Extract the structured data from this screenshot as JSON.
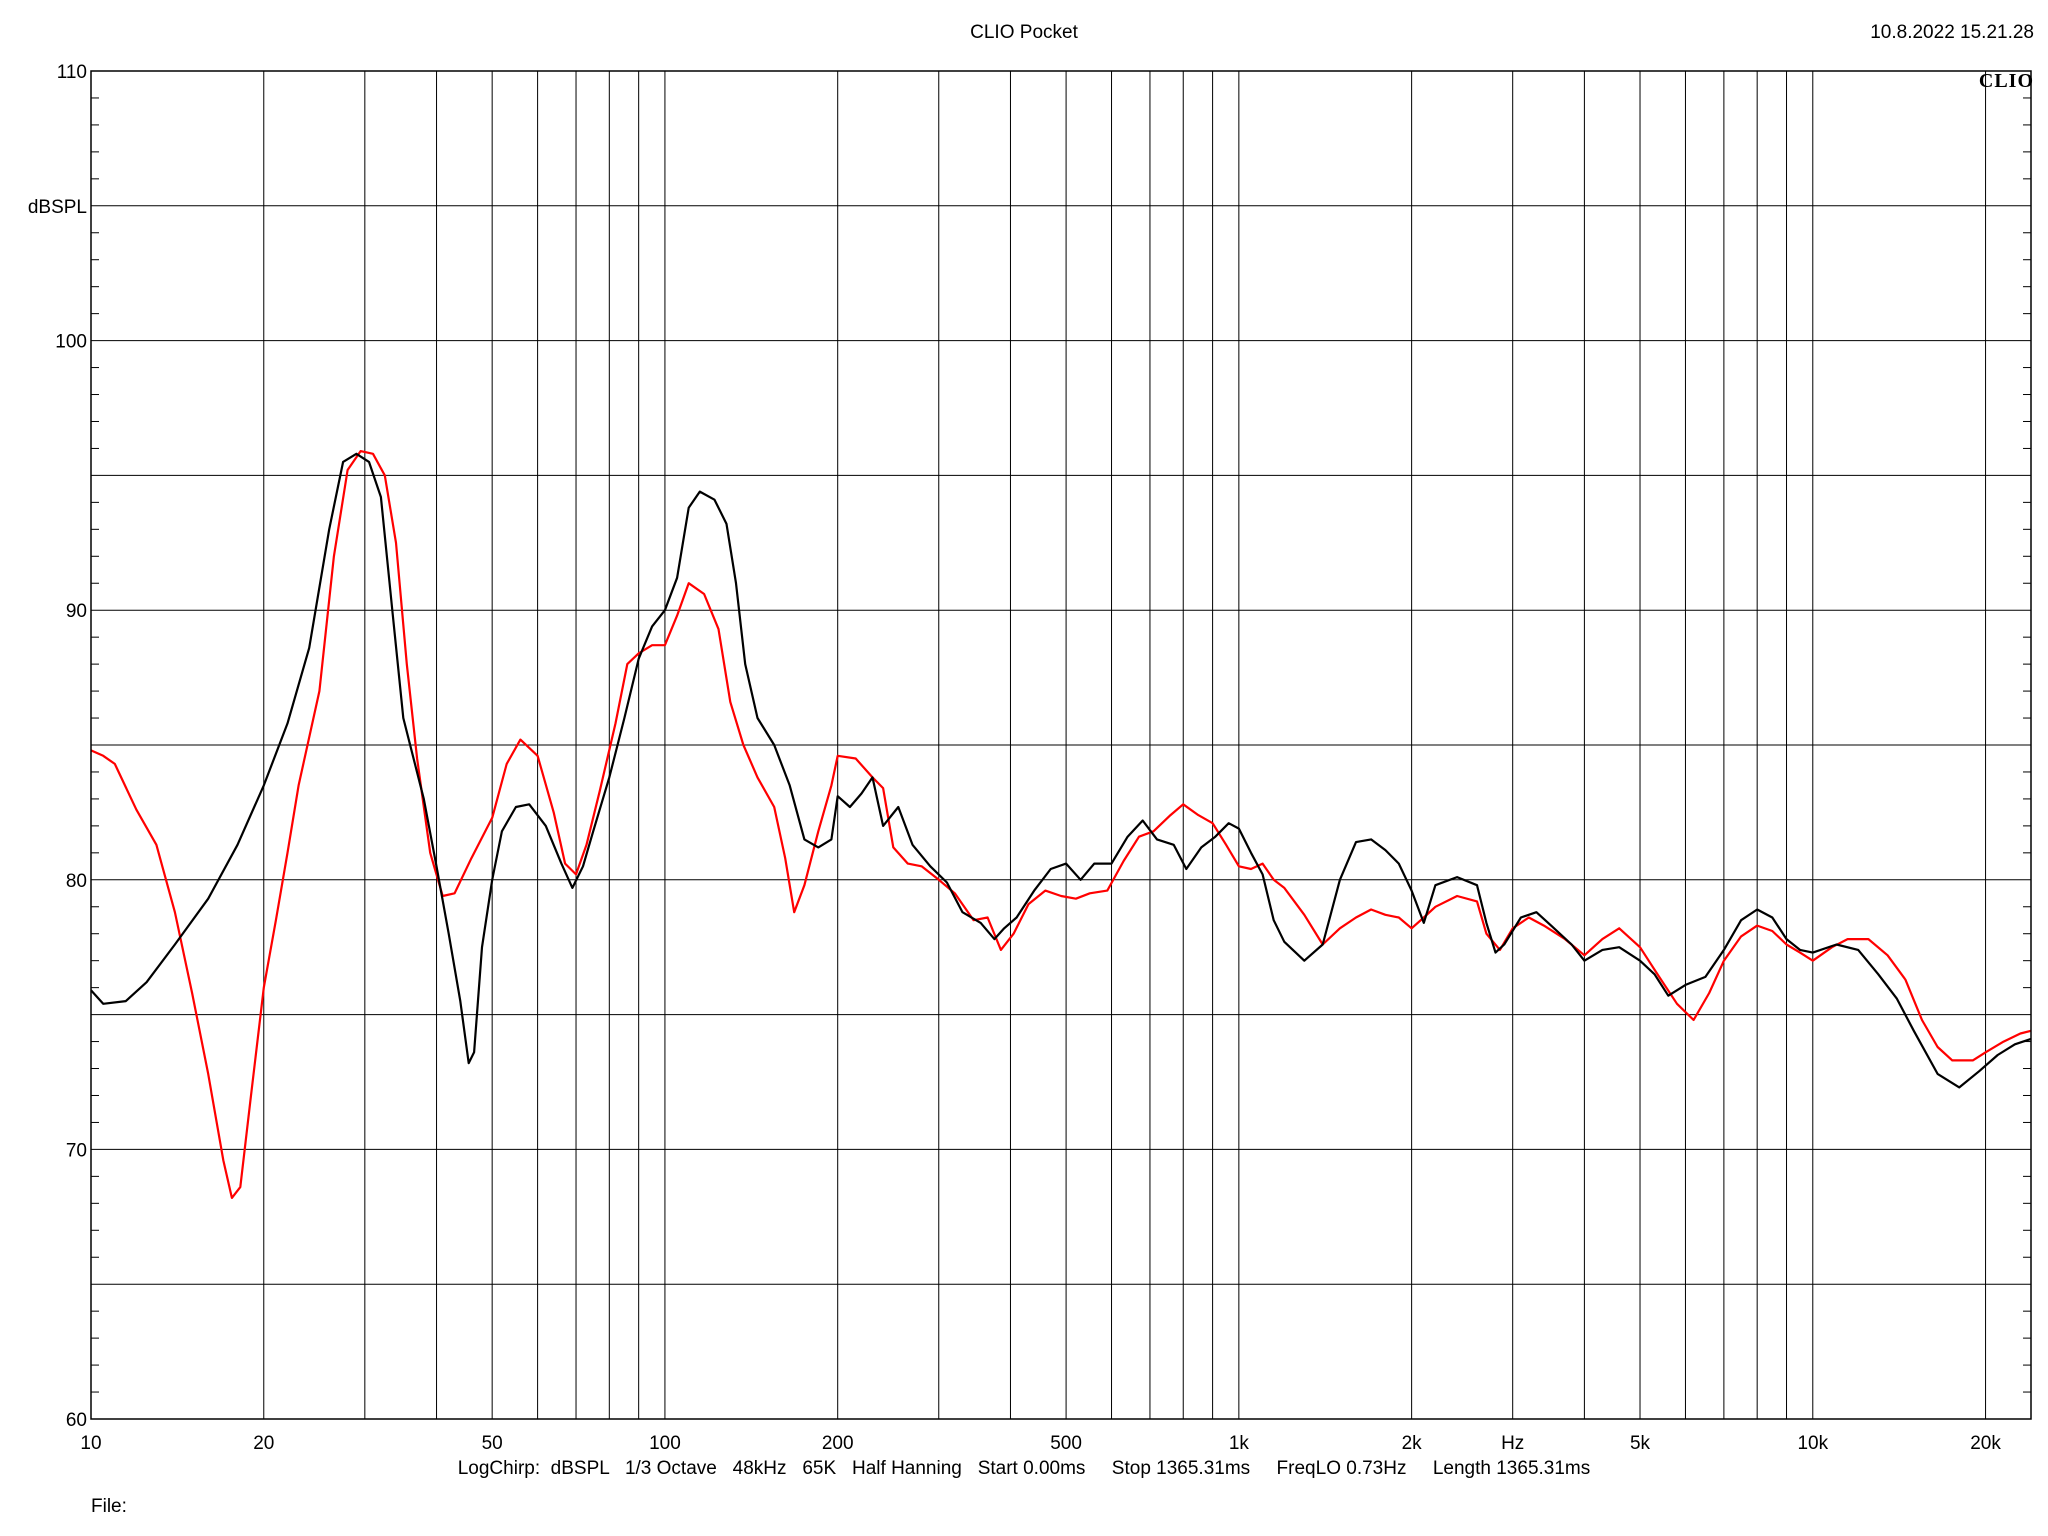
{
  "header": {
    "title": "CLIO Pocket",
    "timestamp": "10.8.2022 15.21.28",
    "brand": "CLIO"
  },
  "footer": {
    "settings": "LogChirp:  dBSPL   1/3 Octave   48kHz   65K   Half Hanning   Start 0.00ms     Stop 1365.31ms     FreqLO 0.73Hz     Length 1365.31ms",
    "file_label": "File:"
  },
  "colors": {
    "series_black": "#000000",
    "series_red": "#ff0000",
    "grid": "#000000"
  },
  "chart_data": {
    "type": "line",
    "title": "CLIO Pocket",
    "xlabel": "Hz",
    "ylabel": "dBSPL",
    "x_scale": "log",
    "xlim": [
      10,
      24000
    ],
    "ylim": [
      60,
      110
    ],
    "grid": true,
    "x_ticks": [
      {
        "value": 10,
        "label": "10"
      },
      {
        "value": 20,
        "label": "20"
      },
      {
        "value": 50,
        "label": "50"
      },
      {
        "value": 100,
        "label": "100"
      },
      {
        "value": 200,
        "label": "200"
      },
      {
        "value": 500,
        "label": "500"
      },
      {
        "value": 1000,
        "label": "1k"
      },
      {
        "value": 2000,
        "label": "2k"
      },
      {
        "value": 5000,
        "label": "5k"
      },
      {
        "value": 10000,
        "label": "10k"
      },
      {
        "value": 20000,
        "label": "20k"
      }
    ],
    "y_ticks": [
      {
        "value": 110,
        "label": "110"
      },
      {
        "value": 100,
        "label": "100"
      },
      {
        "value": 90,
        "label": "90"
      },
      {
        "value": 80,
        "label": "80"
      },
      {
        "value": 70,
        "label": "70"
      },
      {
        "value": 60,
        "label": "60"
      }
    ],
    "series": [
      {
        "color": "#000000",
        "points": [
          [
            10,
            75.9
          ],
          [
            10.5,
            75.4
          ],
          [
            11.5,
            75.5
          ],
          [
            12.5,
            76.2
          ],
          [
            14,
            77.6
          ],
          [
            16,
            79.3
          ],
          [
            18,
            81.3
          ],
          [
            20,
            83.5
          ],
          [
            22,
            85.8
          ],
          [
            24,
            88.6
          ],
          [
            26,
            93.0
          ],
          [
            27.5,
            95.5
          ],
          [
            29,
            95.8
          ],
          [
            30.5,
            95.5
          ],
          [
            32,
            94.2
          ],
          [
            33.5,
            90.0
          ],
          [
            35,
            86.0
          ],
          [
            38,
            83.0
          ],
          [
            40,
            80.5
          ],
          [
            42,
            78.0
          ],
          [
            44,
            75.5
          ],
          [
            45.5,
            73.2
          ],
          [
            46.5,
            73.6
          ],
          [
            48,
            77.5
          ],
          [
            50,
            80.0
          ],
          [
            52,
            81.8
          ],
          [
            55,
            82.7
          ],
          [
            58,
            82.8
          ],
          [
            62,
            82.0
          ],
          [
            66,
            80.6
          ],
          [
            69,
            79.7
          ],
          [
            72,
            80.5
          ],
          [
            75,
            81.8
          ],
          [
            80,
            83.8
          ],
          [
            85,
            86.0
          ],
          [
            90,
            88.2
          ],
          [
            95,
            89.4
          ],
          [
            100,
            90.0
          ],
          [
            105,
            91.2
          ],
          [
            110,
            93.8
          ],
          [
            115,
            94.4
          ],
          [
            122,
            94.1
          ],
          [
            128,
            93.2
          ],
          [
            133,
            91.0
          ],
          [
            138,
            88.0
          ],
          [
            145,
            86.0
          ],
          [
            155,
            85.0
          ],
          [
            165,
            83.5
          ],
          [
            175,
            81.5
          ],
          [
            185,
            81.2
          ],
          [
            195,
            81.5
          ],
          [
            200,
            83.1
          ],
          [
            210,
            82.7
          ],
          [
            220,
            83.2
          ],
          [
            230,
            83.8
          ],
          [
            240,
            82.0
          ],
          [
            255,
            82.7
          ],
          [
            270,
            81.3
          ],
          [
            290,
            80.5
          ],
          [
            310,
            79.9
          ],
          [
            330,
            78.8
          ],
          [
            355,
            78.4
          ],
          [
            375,
            77.8
          ],
          [
            390,
            78.2
          ],
          [
            410,
            78.6
          ],
          [
            440,
            79.6
          ],
          [
            470,
            80.4
          ],
          [
            500,
            80.6
          ],
          [
            530,
            80.0
          ],
          [
            560,
            80.6
          ],
          [
            600,
            80.6
          ],
          [
            640,
            81.6
          ],
          [
            680,
            82.2
          ],
          [
            720,
            81.5
          ],
          [
            770,
            81.3
          ],
          [
            810,
            80.4
          ],
          [
            860,
            81.2
          ],
          [
            910,
            81.6
          ],
          [
            960,
            82.1
          ],
          [
            1000,
            81.9
          ],
          [
            1050,
            81.0
          ],
          [
            1100,
            80.2
          ],
          [
            1150,
            78.5
          ],
          [
            1200,
            77.7
          ],
          [
            1300,
            77.0
          ],
          [
            1400,
            77.6
          ],
          [
            1500,
            80.0
          ],
          [
            1600,
            81.4
          ],
          [
            1700,
            81.5
          ],
          [
            1800,
            81.1
          ],
          [
            1900,
            80.6
          ],
          [
            2000,
            79.6
          ],
          [
            2100,
            78.4
          ],
          [
            2200,
            79.8
          ],
          [
            2400,
            80.1
          ],
          [
            2600,
            79.8
          ],
          [
            2700,
            78.4
          ],
          [
            2800,
            77.3
          ],
          [
            2900,
            77.6
          ],
          [
            3100,
            78.6
          ],
          [
            3300,
            78.8
          ],
          [
            3500,
            78.3
          ],
          [
            3800,
            77.6
          ],
          [
            4000,
            77.0
          ],
          [
            4300,
            77.4
          ],
          [
            4600,
            77.5
          ],
          [
            5000,
            77.0
          ],
          [
            5300,
            76.5
          ],
          [
            5600,
            75.7
          ],
          [
            6000,
            76.1
          ],
          [
            6500,
            76.4
          ],
          [
            7000,
            77.4
          ],
          [
            7500,
            78.5
          ],
          [
            8000,
            78.9
          ],
          [
            8500,
            78.6
          ],
          [
            9000,
            77.8
          ],
          [
            9500,
            77.4
          ],
          [
            10000,
            77.3
          ],
          [
            11000,
            77.6
          ],
          [
            12000,
            77.4
          ],
          [
            13000,
            76.5
          ],
          [
            14000,
            75.6
          ],
          [
            15000,
            74.4
          ],
          [
            16500,
            72.8
          ],
          [
            18000,
            72.3
          ],
          [
            19500,
            72.9
          ],
          [
            21000,
            73.5
          ],
          [
            22500,
            73.9
          ],
          [
            24000,
            74.1
          ]
        ]
      },
      {
        "color": "#ff0000",
        "points": [
          [
            10,
            84.8
          ],
          [
            10.5,
            84.6
          ],
          [
            11,
            84.3
          ],
          [
            12,
            82.6
          ],
          [
            13,
            81.3
          ],
          [
            14,
            78.8
          ],
          [
            15,
            75.8
          ],
          [
            16,
            72.8
          ],
          [
            17,
            69.6
          ],
          [
            17.6,
            68.2
          ],
          [
            18.2,
            68.6
          ],
          [
            19,
            72.0
          ],
          [
            20,
            76.0
          ],
          [
            21,
            78.5
          ],
          [
            22,
            81.0
          ],
          [
            23,
            83.5
          ],
          [
            25,
            87.0
          ],
          [
            26.5,
            92.0
          ],
          [
            28,
            95.2
          ],
          [
            29.5,
            95.9
          ],
          [
            31,
            95.8
          ],
          [
            32.5,
            95.0
          ],
          [
            34,
            92.5
          ],
          [
            35.5,
            88.0
          ],
          [
            37,
            84.5
          ],
          [
            39,
            81.0
          ],
          [
            41,
            79.4
          ],
          [
            43,
            79.5
          ],
          [
            46,
            80.8
          ],
          [
            50,
            82.3
          ],
          [
            53,
            84.3
          ],
          [
            56,
            85.2
          ],
          [
            60,
            84.6
          ],
          [
            64,
            82.5
          ],
          [
            67,
            80.6
          ],
          [
            70,
            80.2
          ],
          [
            73,
            81.3
          ],
          [
            77,
            83.3
          ],
          [
            82,
            85.8
          ],
          [
            86,
            88.0
          ],
          [
            90,
            88.4
          ],
          [
            95,
            88.7
          ],
          [
            100,
            88.7
          ],
          [
            105,
            89.8
          ],
          [
            110,
            91.0
          ],
          [
            117,
            90.6
          ],
          [
            124,
            89.3
          ],
          [
            130,
            86.6
          ],
          [
            137,
            85.0
          ],
          [
            145,
            83.8
          ],
          [
            155,
            82.7
          ],
          [
            162,
            80.8
          ],
          [
            168,
            78.8
          ],
          [
            175,
            79.8
          ],
          [
            185,
            81.8
          ],
          [
            195,
            83.5
          ],
          [
            200,
            84.6
          ],
          [
            215,
            84.5
          ],
          [
            230,
            83.8
          ],
          [
            240,
            83.4
          ],
          [
            250,
            81.2
          ],
          [
            265,
            80.6
          ],
          [
            280,
            80.5
          ],
          [
            300,
            80.0
          ],
          [
            320,
            79.5
          ],
          [
            345,
            78.5
          ],
          [
            365,
            78.6
          ],
          [
            385,
            77.4
          ],
          [
            405,
            78.0
          ],
          [
            430,
            79.1
          ],
          [
            460,
            79.6
          ],
          [
            490,
            79.4
          ],
          [
            520,
            79.3
          ],
          [
            550,
            79.5
          ],
          [
            590,
            79.6
          ],
          [
            630,
            80.7
          ],
          [
            670,
            81.6
          ],
          [
            710,
            81.8
          ],
          [
            760,
            82.4
          ],
          [
            800,
            82.8
          ],
          [
            850,
            82.4
          ],
          [
            900,
            82.1
          ],
          [
            950,
            81.3
          ],
          [
            1000,
            80.5
          ],
          [
            1050,
            80.4
          ],
          [
            1100,
            80.6
          ],
          [
            1150,
            80.0
          ],
          [
            1200,
            79.7
          ],
          [
            1300,
            78.7
          ],
          [
            1400,
            77.6
          ],
          [
            1500,
            78.2
          ],
          [
            1600,
            78.6
          ],
          [
            1700,
            78.9
          ],
          [
            1800,
            78.7
          ],
          [
            1900,
            78.6
          ],
          [
            2000,
            78.2
          ],
          [
            2100,
            78.6
          ],
          [
            2200,
            79.0
          ],
          [
            2400,
            79.4
          ],
          [
            2600,
            79.2
          ],
          [
            2700,
            78.0
          ],
          [
            2850,
            77.4
          ],
          [
            3000,
            78.2
          ],
          [
            3200,
            78.6
          ],
          [
            3400,
            78.3
          ],
          [
            3700,
            77.8
          ],
          [
            4000,
            77.2
          ],
          [
            4300,
            77.8
          ],
          [
            4600,
            78.2
          ],
          [
            5000,
            77.5
          ],
          [
            5400,
            76.4
          ],
          [
            5800,
            75.4
          ],
          [
            6200,
            74.8
          ],
          [
            6600,
            75.8
          ],
          [
            7000,
            77.0
          ],
          [
            7500,
            77.9
          ],
          [
            8000,
            78.3
          ],
          [
            8500,
            78.1
          ],
          [
            9000,
            77.6
          ],
          [
            9500,
            77.3
          ],
          [
            10000,
            77.0
          ],
          [
            10800,
            77.5
          ],
          [
            11500,
            77.8
          ],
          [
            12500,
            77.8
          ],
          [
            13500,
            77.2
          ],
          [
            14500,
            76.3
          ],
          [
            15500,
            74.8
          ],
          [
            16500,
            73.8
          ],
          [
            17500,
            73.3
          ],
          [
            19000,
            73.3
          ],
          [
            20000,
            73.6
          ],
          [
            21500,
            74.0
          ],
          [
            23000,
            74.3
          ],
          [
            24000,
            74.4
          ]
        ]
      }
    ]
  }
}
